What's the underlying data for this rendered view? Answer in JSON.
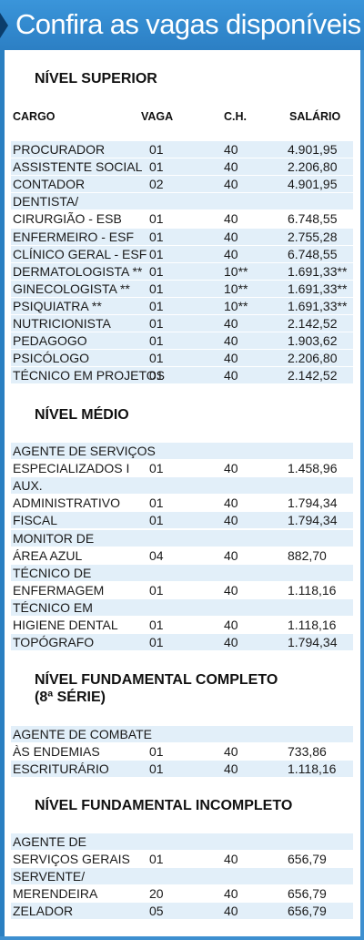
{
  "header": {
    "title": "Confira as vagas disponíveis"
  },
  "columns": {
    "cargo": "CARGO",
    "vaga": "VAGA",
    "ch": "C.H.",
    "salario": "SALÁRIO"
  },
  "sections": [
    {
      "title": [
        "NÍVEL SUPERIOR"
      ],
      "rows": [
        {
          "cargo": [
            "PROCURADOR"
          ],
          "vaga": "01",
          "ch": "40",
          "salario": "4.901,95"
        },
        {
          "cargo": [
            "ASSISTENTE SOCIAL"
          ],
          "vaga": "01",
          "ch": "40",
          "salario": "2.206,80"
        },
        {
          "cargo": [
            "CONTADOR"
          ],
          "vaga": "02",
          "ch": "40",
          "salario": "4.901,95"
        },
        {
          "cargo": [
            "DENTISTA/",
            "CIRURGIÃO - ESB"
          ],
          "vaga": "01",
          "ch": "40",
          "salario": "6.748,55"
        },
        {
          "cargo": [
            "ENFERMEIRO - ESF"
          ],
          "vaga": "01",
          "ch": "40",
          "salario": "2.755,28"
        },
        {
          "cargo": [
            "CLÍNICO GERAL - ESF"
          ],
          "vaga": "01",
          "ch": "40",
          "salario": "6.748,55"
        },
        {
          "cargo": [
            "DERMATOLOGISTA **"
          ],
          "vaga": "01",
          "ch": "10**",
          "salario": "1.691,33**"
        },
        {
          "cargo": [
            "GINECOLOGISTA **"
          ],
          "vaga": "01",
          "ch": "10**",
          "salario": "1.691,33**"
        },
        {
          "cargo": [
            "PSIQUIATRA **"
          ],
          "vaga": "01",
          "ch": "10**",
          "salario": "1.691,33**"
        },
        {
          "cargo": [
            " NUTRICIONISTA"
          ],
          "vaga": "01",
          "ch": "40",
          "salario": "2.142,52"
        },
        {
          "cargo": [
            "PEDAGOGO"
          ],
          "vaga": "01",
          "ch": "40",
          "salario": "1.903,62"
        },
        {
          "cargo": [
            "PSICÓLOGO"
          ],
          "vaga": "01",
          "ch": "40",
          "salario": "2.206,80"
        },
        {
          "cargo": [
            "TÉCNICO EM PROJETOS"
          ],
          "vaga": "01",
          "ch": "40",
          "salario": "2.142,52"
        }
      ]
    },
    {
      "title": [
        "NÍVEL MÉDIO"
      ],
      "rows": [
        {
          "cargo": [
            "AGENTE DE SERVIÇOS",
            "ESPECIALIZADOS I"
          ],
          "vaga": "01",
          "ch": "40",
          "salario": "1.458,96"
        },
        {
          "cargo": [
            "AUX.",
            "ADMINISTRATIVO"
          ],
          "vaga": "01",
          "ch": "40",
          "salario": "1.794,34"
        },
        {
          "cargo": [
            "FISCAL"
          ],
          "vaga": "01",
          "ch": "40",
          "salario": "1.794,34"
        },
        {
          "cargo": [
            "MONITOR DE",
            "ÁREA AZUL"
          ],
          "vaga": "04",
          "ch": "40",
          "salario": "882,70"
        },
        {
          "cargo": [
            "TÉCNICO DE",
            "ENFERMAGEM"
          ],
          "vaga": "01",
          "ch": "40",
          "salario": "1.118,16"
        },
        {
          "cargo": [
            "TÉCNICO EM",
            "HIGIENE DENTAL"
          ],
          "vaga": "01",
          "ch": "40",
          "salario": "1.118,16"
        },
        {
          "cargo": [
            "TOPÓGRAFO"
          ],
          "vaga": "01",
          "ch": "40",
          "salario": "1.794,34"
        }
      ]
    },
    {
      "title": [
        "NÍVEL FUNDAMENTAL COMPLETO",
        "(8ª SÉRIE)"
      ],
      "rows": [
        {
          "cargo": [
            "AGENTE DE COMBATE",
            "ÀS ENDEMIAS"
          ],
          "vaga": "01",
          "ch": "40",
          "salario": "733,86"
        },
        {
          "cargo": [
            "ESCRITURÁRIO"
          ],
          "vaga": "01",
          "ch": "40",
          "salario": "1.118,16"
        }
      ]
    },
    {
      "title": [
        "NÍVEL FUNDAMENTAL INCOMPLETO"
      ],
      "rows": [
        {
          "cargo": [
            "AGENTE DE",
            "SERVIÇOS GERAIS"
          ],
          "vaga": "01",
          "ch": "40",
          "salario": "656,79"
        },
        {
          "cargo": [
            "SERVENTE/",
            "MERENDEIRA"
          ],
          "vaga": "20",
          "ch": "40",
          "salario": "656,79"
        },
        {
          "cargo": [
            " ZELADOR"
          ],
          "vaga": "05",
          "ch": "40",
          "salario": "656,79"
        }
      ]
    }
  ]
}
